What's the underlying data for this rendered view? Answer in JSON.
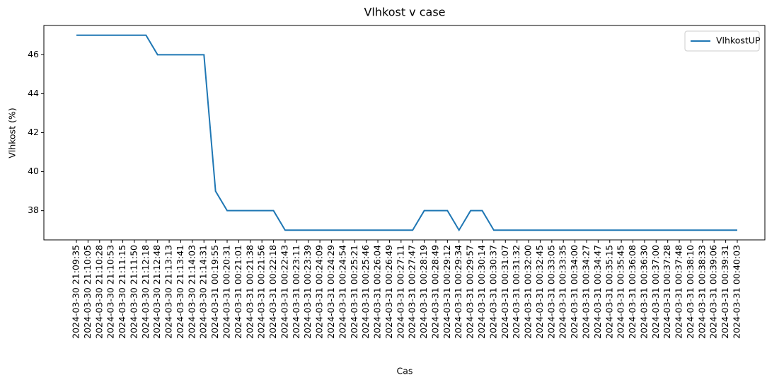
{
  "chart_data": {
    "type": "line",
    "title": "Vlhkost v case",
    "x_label": "Cas",
    "y_label": "Vlhkost (%)",
    "categories": [
      "2024-03-30 21:09:35",
      "2024-03-30 21:10:05",
      "2024-03-30 21:10:28",
      "2024-03-30 21:10:53",
      "2024-03-30 21:11:15",
      "2024-03-30 21:11:50",
      "2024-03-30 21:12:18",
      "2024-03-30 21:12:48",
      "2024-03-30 21:13:13",
      "2024-03-30 21:13:41",
      "2024-03-30 21:14:03",
      "2024-03-30 21:14:31",
      "2024-03-31 00:19:55",
      "2024-03-31 00:20:31",
      "2024-03-31 00:21:01",
      "2024-03-31 00:21:38",
      "2024-03-31 00:21:56",
      "2024-03-31 00:22:18",
      "2024-03-31 00:22:43",
      "2024-03-31 00:23:11",
      "2024-03-31 00:23:39",
      "2024-03-31 00:24:09",
      "2024-03-31 00:24:29",
      "2024-03-31 00:24:54",
      "2024-03-31 00:25:21",
      "2024-03-31 00:25:46",
      "2024-03-31 00:26:04",
      "2024-03-31 00:26:49",
      "2024-03-31 00:27:11",
      "2024-03-31 00:27:47",
      "2024-03-31 00:28:19",
      "2024-03-31 00:28:49",
      "2024-03-31 00:29:12",
      "2024-03-31 00:29:34",
      "2024-03-31 00:29:57",
      "2024-03-31 00:30:14",
      "2024-03-31 00:30:37",
      "2024-03-31 00:31:07",
      "2024-03-31 00:31:32",
      "2024-03-31 00:32:00",
      "2024-03-31 00:32:45",
      "2024-03-31 00:33:05",
      "2024-03-31 00:33:35",
      "2024-03-31 00:34:00",
      "2024-03-31 00:34:27",
      "2024-03-31 00:34:47",
      "2024-03-31 00:35:15",
      "2024-03-31 00:35:45",
      "2024-03-31 00:36:08",
      "2024-03-31 00:36:30",
      "2024-03-31 00:37:00",
      "2024-03-31 00:37:28",
      "2024-03-31 00:37:48",
      "2024-03-31 00:38:10",
      "2024-03-31 00:38:33",
      "2024-03-31 00:39:06",
      "2024-03-31 00:39:31",
      "2024-03-31 00:40:03"
    ],
    "series": [
      {
        "name": "VlhkostUP",
        "color": "#1f77b4",
        "values": [
          47,
          47,
          47,
          47,
          47,
          47,
          47,
          46,
          46,
          46,
          46,
          46,
          39,
          38,
          38,
          38,
          38,
          38,
          37,
          37,
          37,
          37,
          37,
          37,
          37,
          37,
          37,
          37,
          37,
          37,
          38,
          38,
          38,
          37,
          38,
          38,
          37,
          37,
          37,
          37,
          37,
          37,
          37,
          37,
          37,
          37,
          37,
          37,
          37,
          37,
          37,
          37,
          37,
          37,
          37,
          37,
          37,
          37
        ]
      }
    ],
    "ylim": [
      36.5,
      47.5
    ],
    "yticks": [
      38,
      40,
      42,
      44,
      46
    ],
    "grid": false,
    "legend": "upper right"
  }
}
